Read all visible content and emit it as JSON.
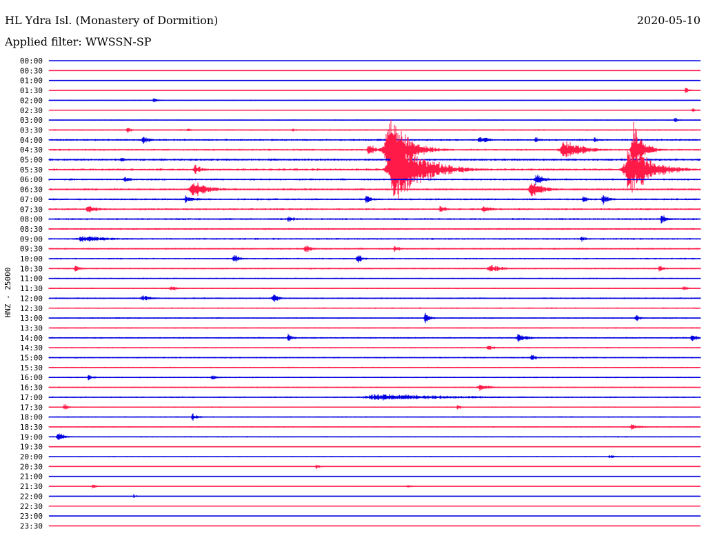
{
  "header": {
    "station": "HL Ydra Isl. (Monastery of Dormition)",
    "date": "2020-05-10",
    "filter": "Applied filter: WWSSN-SP"
  },
  "chart_data": {
    "type": "line",
    "title": "HL Ydra Isl. (Monastery of Dormition)",
    "ylabel": "HNZ - 25000",
    "channel": "HNZ",
    "scale": 25000,
    "filter": "WWSSN-SP",
    "row_interval_minutes": 30,
    "row_labels": [
      "00:00",
      "00:30",
      "01:00",
      "01:30",
      "02:00",
      "02:30",
      "03:00",
      "03:30",
      "04:00",
      "04:30",
      "05:00",
      "05:30",
      "06:00",
      "06:30",
      "07:00",
      "07:30",
      "08:00",
      "08:30",
      "09:00",
      "09:30",
      "10:00",
      "10:30",
      "11:00",
      "11:30",
      "12:00",
      "12:30",
      "13:00",
      "13:30",
      "14:00",
      "14:30",
      "15:00",
      "15:30",
      "16:00",
      "16:30",
      "17:00",
      "17:30",
      "18:00",
      "18:30",
      "19:00",
      "19:30",
      "20:00",
      "20:30",
      "21:00",
      "21:30",
      "22:00",
      "22:30",
      "23:00",
      "23:30"
    ],
    "colors": {
      "even_rows": "#0000e0",
      "odd_rows": "#ff1a48",
      "axis": "#000000"
    },
    "noise_level": [
      0.3,
      0.4,
      0.3,
      0.5,
      0.6,
      0.7,
      0.7,
      0.9,
      1.2,
      1.2,
      1.4,
      1.4,
      1.2,
      1.3,
      1.2,
      1.2,
      1.2,
      1.1,
      1.1,
      1.1,
      1.0,
      1.0,
      0.9,
      0.9,
      1.0,
      0.9,
      0.9,
      0.9,
      1.0,
      0.9,
      1.0,
      0.9,
      0.9,
      0.9,
      1.0,
      0.8,
      0.8,
      0.8,
      0.8,
      0.6,
      0.6,
      0.5,
      0.4,
      0.4,
      0.4,
      0.3,
      0.3,
      0.3
    ],
    "events": [
      {
        "row": 3,
        "minute": 29.3,
        "amplitude": 5,
        "duration_minutes": 0.4
      },
      {
        "row": 4,
        "minute": 4.8,
        "amplitude": 4,
        "duration_minutes": 0.6
      },
      {
        "row": 5,
        "minute": 29.6,
        "amplitude": 4,
        "duration_minutes": 0.5
      },
      {
        "row": 6,
        "minute": 28.8,
        "amplitude": 5,
        "duration_minutes": 0.4
      },
      {
        "row": 7,
        "minute": 3.6,
        "amplitude": 6,
        "duration_minutes": 0.4
      },
      {
        "row": 7,
        "minute": 6.4,
        "amplitude": 3,
        "duration_minutes": 0.5
      },
      {
        "row": 7,
        "minute": 11.2,
        "amplitude": 4,
        "duration_minutes": 0.4
      },
      {
        "row": 8,
        "minute": 4.3,
        "amplitude": 8,
        "duration_minutes": 0.6
      },
      {
        "row": 8,
        "minute": 20.0,
        "amplitude": 6,
        "duration_minutes": 0.6
      },
      {
        "row": 8,
        "minute": 19.8,
        "amplitude": 6,
        "duration_minutes": 0.5
      },
      {
        "row": 8,
        "minute": 22.4,
        "amplitude": 5,
        "duration_minutes": 0.5
      },
      {
        "row": 8,
        "minute": 25.1,
        "amplitude": 5,
        "duration_minutes": 0.4
      },
      {
        "row": 8,
        "minute": 27.0,
        "amplitude": 4,
        "duration_minutes": 0.4
      },
      {
        "row": 9,
        "minute": 14.7,
        "amplitude": 12,
        "duration_minutes": 0.6
      },
      {
        "row": 9,
        "minute": 15.6,
        "amplitude": 70,
        "duration_minutes": 1.4
      },
      {
        "row": 9,
        "minute": 23.7,
        "amplitude": 18,
        "duration_minutes": 1.5
      },
      {
        "row": 9,
        "minute": 26.9,
        "amplitude": 45,
        "duration_minutes": 0.8
      },
      {
        "row": 10,
        "minute": 3.3,
        "amplitude": 5,
        "duration_minutes": 0.5
      },
      {
        "row": 11,
        "minute": 6.7,
        "amplitude": 9,
        "duration_minutes": 0.6
      },
      {
        "row": 11,
        "minute": 15.9,
        "amplitude": 62,
        "duration_minutes": 2.2
      },
      {
        "row": 11,
        "minute": 26.7,
        "amplitude": 45,
        "duration_minutes": 1.8
      },
      {
        "row": 12,
        "minute": 3.5,
        "amplitude": 6,
        "duration_minutes": 0.6
      },
      {
        "row": 12,
        "minute": 22.4,
        "amplitude": 10,
        "duration_minutes": 0.9
      },
      {
        "row": 13,
        "minute": 6.6,
        "amplitude": 14,
        "duration_minutes": 1.4
      },
      {
        "row": 13,
        "minute": 22.2,
        "amplitude": 16,
        "duration_minutes": 1.0
      },
      {
        "row": 14,
        "minute": 6.3,
        "amplitude": 8,
        "duration_minutes": 0.8
      },
      {
        "row": 14,
        "minute": 14.6,
        "amplitude": 7,
        "duration_minutes": 0.6
      },
      {
        "row": 14,
        "minute": 24.6,
        "amplitude": 6,
        "duration_minutes": 0.5
      },
      {
        "row": 14,
        "minute": 25.5,
        "amplitude": 9,
        "duration_minutes": 0.6
      },
      {
        "row": 15,
        "minute": 1.8,
        "amplitude": 7,
        "duration_minutes": 0.9
      },
      {
        "row": 15,
        "minute": 18.0,
        "amplitude": 6,
        "duration_minutes": 0.7
      },
      {
        "row": 15,
        "minute": 20.0,
        "amplitude": 7,
        "duration_minutes": 0.7
      },
      {
        "row": 16,
        "minute": 11.0,
        "amplitude": 6,
        "duration_minutes": 0.6
      },
      {
        "row": 16,
        "minute": 28.2,
        "amplitude": 9,
        "duration_minutes": 0.5
      },
      {
        "row": 18,
        "minute": 1.5,
        "amplitude": 6,
        "duration_minutes": 2.5
      },
      {
        "row": 18,
        "minute": 24.5,
        "amplitude": 6,
        "duration_minutes": 0.5
      },
      {
        "row": 19,
        "minute": 11.8,
        "amplitude": 9,
        "duration_minutes": 0.6
      },
      {
        "row": 19,
        "minute": 15.9,
        "amplitude": 7,
        "duration_minutes": 0.5
      },
      {
        "row": 20,
        "minute": 8.5,
        "amplitude": 7,
        "duration_minutes": 0.6
      },
      {
        "row": 20,
        "minute": 14.2,
        "amplitude": 8,
        "duration_minutes": 0.5
      },
      {
        "row": 21,
        "minute": 1.2,
        "amplitude": 6,
        "duration_minutes": 0.5
      },
      {
        "row": 21,
        "minute": 20.3,
        "amplitude": 7,
        "duration_minutes": 1.2
      },
      {
        "row": 21,
        "minute": 28.1,
        "amplitude": 7,
        "duration_minutes": 0.4
      },
      {
        "row": 23,
        "minute": 5.6,
        "amplitude": 5,
        "duration_minutes": 0.6
      },
      {
        "row": 23,
        "minute": 29.2,
        "amplitude": 5,
        "duration_minutes": 0.4
      },
      {
        "row": 24,
        "minute": 4.3,
        "amplitude": 6,
        "duration_minutes": 0.8
      },
      {
        "row": 24,
        "minute": 10.3,
        "amplitude": 9,
        "duration_minutes": 0.5
      },
      {
        "row": 26,
        "minute": 17.3,
        "amplitude": 10,
        "duration_minutes": 0.5
      },
      {
        "row": 26,
        "minute": 27.0,
        "amplitude": 6,
        "duration_minutes": 0.5
      },
      {
        "row": 28,
        "minute": 11.0,
        "amplitude": 7,
        "duration_minutes": 0.5
      },
      {
        "row": 28,
        "minute": 21.6,
        "amplitude": 7,
        "duration_minutes": 1.0
      },
      {
        "row": 28,
        "minute": 29.6,
        "amplitude": 8,
        "duration_minutes": 0.6
      },
      {
        "row": 29,
        "minute": 20.2,
        "amplitude": 5,
        "duration_minutes": 0.6
      },
      {
        "row": 30,
        "minute": 22.2,
        "amplitude": 6,
        "duration_minutes": 0.5
      },
      {
        "row": 32,
        "minute": 1.8,
        "amplitude": 5,
        "duration_minutes": 0.5
      },
      {
        "row": 32,
        "minute": 7.5,
        "amplitude": 6,
        "duration_minutes": 0.5
      },
      {
        "row": 33,
        "minute": 19.8,
        "amplitude": 6,
        "duration_minutes": 1.0
      },
      {
        "row": 34,
        "minute": 15.0,
        "amplitude": 6,
        "duration_minutes": 7.0
      },
      {
        "row": 35,
        "minute": 0.7,
        "amplitude": 6,
        "duration_minutes": 0.5
      },
      {
        "row": 35,
        "minute": 18.8,
        "amplitude": 5,
        "duration_minutes": 0.4
      },
      {
        "row": 36,
        "minute": 6.6,
        "amplitude": 6,
        "duration_minutes": 0.6
      },
      {
        "row": 37,
        "minute": 26.8,
        "amplitude": 6,
        "duration_minutes": 0.8
      },
      {
        "row": 38,
        "minute": 0.4,
        "amplitude": 8,
        "duration_minutes": 0.6
      },
      {
        "row": 40,
        "minute": 25.8,
        "amplitude": 4,
        "duration_minutes": 0.5
      },
      {
        "row": 41,
        "minute": 12.3,
        "amplitude": 5,
        "duration_minutes": 0.4
      },
      {
        "row": 43,
        "minute": 2.0,
        "amplitude": 4,
        "duration_minutes": 0.5
      },
      {
        "row": 43,
        "minute": 16.5,
        "amplitude": 4,
        "duration_minutes": 0.5
      },
      {
        "row": 44,
        "minute": 3.9,
        "amplitude": 4,
        "duration_minutes": 0.3
      }
    ]
  }
}
